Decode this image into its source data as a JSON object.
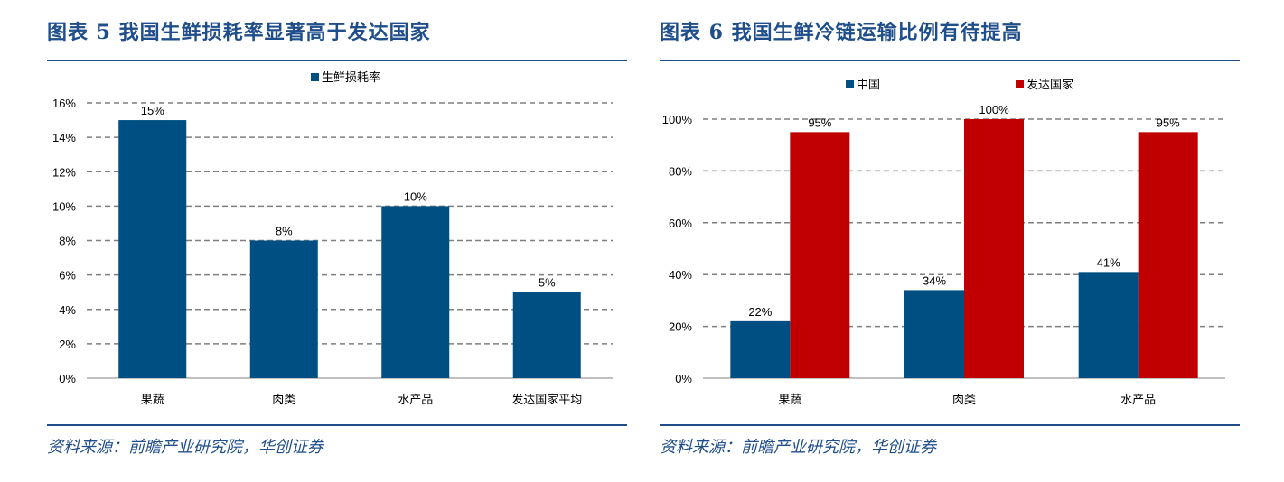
{
  "left": {
    "title": "图表 5  我国生鲜损耗率显著高于发达国家",
    "source": "资料来源：前瞻产业研究院，华创证券"
  },
  "right": {
    "title": "图表 6 我国生鲜冷链运输比例有待提高",
    "source": "资料来源：前瞻产业研究院，华创证券"
  },
  "colors": {
    "blue": "#004f82",
    "red": "#c00000",
    "frame": "#1f4e8a"
  },
  "chart_data": [
    {
      "type": "bar",
      "categories": [
        "果蔬",
        "肉类",
        "水产品",
        "发达国家平均"
      ],
      "series": [
        {
          "name": "生鲜损耗率",
          "values": [
            15,
            8,
            10,
            5
          ],
          "labels": [
            "15%",
            "8%",
            "10%",
            "5%"
          ]
        }
      ],
      "ylim": [
        0,
        16
      ],
      "yticks": [
        "0%",
        "2%",
        "4%",
        "6%",
        "8%",
        "10%",
        "12%",
        "14%",
        "16%"
      ],
      "grid": true,
      "legend": "top-center"
    },
    {
      "type": "bar",
      "categories": [
        "果蔬",
        "肉类",
        "水产品"
      ],
      "series": [
        {
          "name": "中国",
          "values": [
            22,
            34,
            41
          ],
          "labels": [
            "22%",
            "34%",
            "41%"
          ]
        },
        {
          "name": "发达国家",
          "values": [
            95,
            100,
            95
          ],
          "labels": [
            "95%",
            "100%",
            "95%"
          ]
        }
      ],
      "ylim": [
        0,
        100
      ],
      "yticks": [
        "0%",
        "20%",
        "40%",
        "60%",
        "80%",
        "100%"
      ],
      "grid": true,
      "legend": "top-left"
    }
  ]
}
